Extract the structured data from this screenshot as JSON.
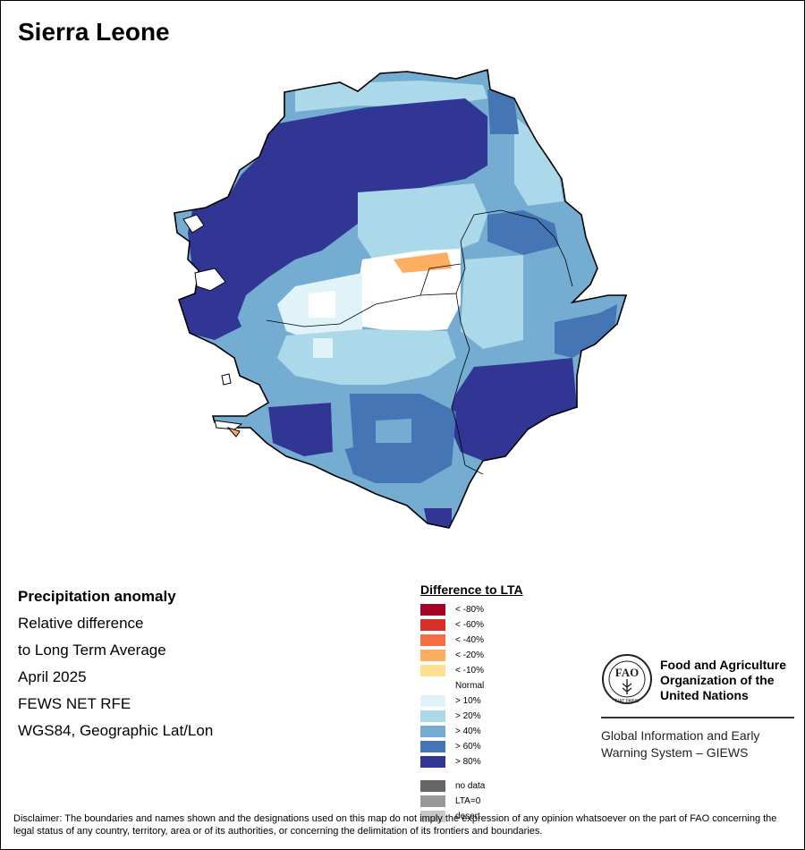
{
  "map_title": "Sierra Leone",
  "info": {
    "heading": "Precipitation anomaly",
    "lines": [
      "Relative difference",
      "to Long Term Average",
      "April 2025",
      "FEWS NET RFE",
      "WGS84, Geographic Lat/Lon"
    ]
  },
  "legend": {
    "title": "Difference to LTA",
    "classes": [
      {
        "label": "< -80%",
        "color": "#a50026"
      },
      {
        "label": "< -60%",
        "color": "#d73027"
      },
      {
        "label": "< -40%",
        "color": "#f46d43"
      },
      {
        "label": "< -20%",
        "color": "#fdae61"
      },
      {
        "label": "< -10%",
        "color": "#fee090"
      },
      {
        "label": "Normal",
        "color": "#ffffff"
      },
      {
        "label": "> 10%",
        "color": "#e0f3f8"
      },
      {
        "label": "> 20%",
        "color": "#abd9e9"
      },
      {
        "label": "> 40%",
        "color": "#74add1"
      },
      {
        "label": "> 60%",
        "color": "#4575b4"
      },
      {
        "label": "> 80%",
        "color": "#313695"
      }
    ],
    "extra": [
      {
        "label": "no data",
        "color": "#666666"
      },
      {
        "label": "LTA=0",
        "color": "#999999"
      },
      {
        "label": "desert",
        "color": "#c8c8c8"
      }
    ]
  },
  "fao": {
    "org_lines": [
      "Food and Agriculture",
      "Organization of the",
      "United Nations"
    ],
    "logo_text": "FIAT PANIS",
    "giews_lines": [
      "Global Information and Early",
      "Warning System – GIEWS"
    ]
  },
  "disclaimer": "Disclaimer: The boundaries and names shown and the designations used on this map do not imply the expression of any opinion whatsoever on the part of FAO concerning the legal status of any country, territory, area or of its authorities, or concerning the delimitation of its frontiers and boundaries."
}
